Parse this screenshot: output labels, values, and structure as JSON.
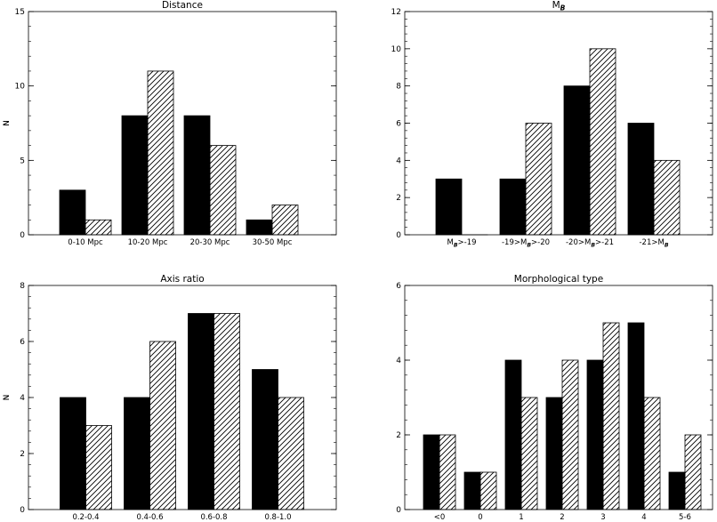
{
  "chart_data": [
    {
      "type": "bar",
      "title": "Distance",
      "title_sub": "",
      "ylabel": "N",
      "ylim": [
        0,
        15
      ],
      "yticks": [
        0,
        5,
        10,
        15
      ],
      "categories": [
        "0-10 Mpc",
        "10-20 Mpc",
        "20-30 Mpc",
        "30-50 Mpc"
      ],
      "category_subs": [
        "",
        "",
        "",
        ""
      ],
      "series": [
        {
          "fill": "solid",
          "values": [
            3,
            8,
            8,
            1
          ]
        },
        {
          "fill": "hatched",
          "values": [
            1,
            11,
            6,
            2
          ]
        }
      ]
    },
    {
      "type": "bar",
      "title": "M",
      "title_sub": "B",
      "ylabel": "N",
      "ylim": [
        0,
        12
      ],
      "yticks": [
        0,
        2,
        4,
        6,
        8,
        10,
        12
      ],
      "categories": [
        "M>-19",
        "-19>M>-20",
        "-20>M>-21",
        "-21>M"
      ],
      "category_subs": [
        "B",
        "B",
        "B",
        "B"
      ],
      "series": [
        {
          "fill": "solid",
          "values": [
            3,
            3,
            8,
            6
          ]
        },
        {
          "fill": "hatched",
          "values": [
            0,
            6,
            10,
            4
          ]
        }
      ]
    },
    {
      "type": "bar",
      "title": "Axis ratio",
      "title_sub": "",
      "ylabel": "N",
      "ylim": [
        0,
        8
      ],
      "yticks": [
        0,
        2,
        4,
        6,
        8
      ],
      "categories": [
        "0.2-0.4",
        "0.4-0.6",
        "0.6-0.8",
        "0.8-1.0"
      ],
      "category_subs": [
        "",
        "",
        "",
        ""
      ],
      "series": [
        {
          "fill": "solid",
          "values": [
            4,
            4,
            7,
            5
          ]
        },
        {
          "fill": "hatched",
          "values": [
            3,
            6,
            7,
            4
          ]
        }
      ]
    },
    {
      "type": "bar",
      "title": "Morphological type",
      "title_sub": "",
      "ylabel": "N",
      "ylim": [
        0,
        6
      ],
      "yticks": [
        0,
        2,
        4,
        6
      ],
      "categories": [
        "<0",
        "0",
        "1",
        "2",
        "3",
        "4",
        "5-6"
      ],
      "category_subs": [
        "",
        "",
        "",
        "",
        "",
        "",
        ""
      ],
      "series": [
        {
          "fill": "solid",
          "values": [
            2,
            1,
            4,
            3,
            4,
            5,
            1
          ]
        },
        {
          "fill": "hatched",
          "values": [
            2,
            1,
            3,
            4,
            5,
            3,
            2
          ]
        }
      ]
    }
  ]
}
